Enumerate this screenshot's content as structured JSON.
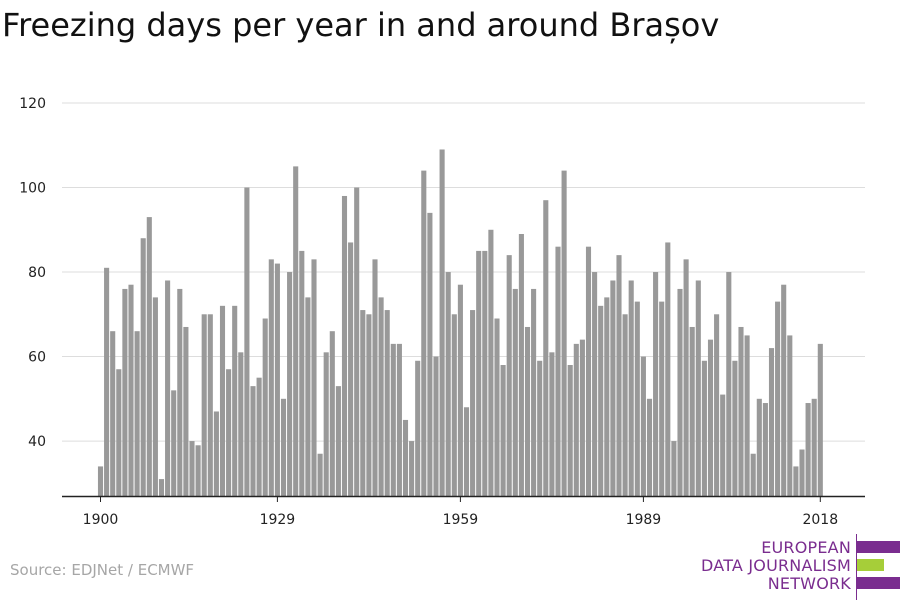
{
  "chart_data": {
    "type": "bar",
    "title": "Freezing days per year in and around Brașov",
    "xlabel": "",
    "ylabel": "",
    "x": [
      1900,
      1901,
      1902,
      1903,
      1904,
      1905,
      1906,
      1907,
      1908,
      1909,
      1910,
      1911,
      1912,
      1913,
      1914,
      1915,
      1916,
      1917,
      1918,
      1919,
      1920,
      1921,
      1922,
      1923,
      1924,
      1925,
      1926,
      1927,
      1928,
      1929,
      1930,
      1931,
      1932,
      1933,
      1934,
      1935,
      1936,
      1937,
      1938,
      1939,
      1940,
      1941,
      1942,
      1943,
      1944,
      1945,
      1946,
      1947,
      1948,
      1949,
      1950,
      1951,
      1952,
      1953,
      1954,
      1955,
      1956,
      1957,
      1958,
      1959,
      1960,
      1961,
      1962,
      1963,
      1964,
      1965,
      1966,
      1967,
      1968,
      1969,
      1970,
      1971,
      1972,
      1973,
      1974,
      1975,
      1976,
      1977,
      1978,
      1979,
      1980,
      1981,
      1982,
      1983,
      1984,
      1985,
      1986,
      1987,
      1988,
      1989,
      1990,
      1991,
      1992,
      1993,
      1994,
      1995,
      1996,
      1997,
      1998,
      1999,
      2000,
      2001,
      2002,
      2003,
      2004,
      2005,
      2006,
      2007,
      2008,
      2009,
      2010,
      2011,
      2012,
      2013,
      2014,
      2015,
      2016,
      2017,
      2018
    ],
    "values": [
      34,
      81,
      66,
      57,
      76,
      77,
      66,
      88,
      93,
      74,
      31,
      78,
      52,
      76,
      67,
      40,
      39,
      70,
      70,
      47,
      72,
      57,
      72,
      61,
      100,
      53,
      55,
      69,
      83,
      82,
      50,
      80,
      105,
      85,
      74,
      83,
      37,
      61,
      66,
      53,
      98,
      87,
      100,
      71,
      70,
      83,
      74,
      71,
      63,
      63,
      45,
      40,
      59,
      104,
      94,
      60,
      109,
      80,
      70,
      77,
      48,
      71,
      85,
      85,
      90,
      69,
      58,
      84,
      76,
      89,
      67,
      76,
      59,
      97,
      61,
      86,
      104,
      58,
      63,
      64,
      86,
      80,
      72,
      74,
      78,
      84,
      70,
      78,
      73,
      60,
      50,
      80,
      73,
      87,
      40,
      76,
      83,
      67,
      78,
      59,
      64,
      70,
      51,
      80,
      59,
      67,
      65,
      37,
      50,
      49,
      62,
      73,
      77,
      65,
      34,
      38,
      49,
      50,
      63
    ],
    "x_ticks": [
      "1900",
      "1929",
      "1959",
      "1989",
      "2018"
    ],
    "y_ticks": [
      "40",
      "60",
      "80",
      "100",
      "120"
    ],
    "ylim": [
      27,
      120
    ],
    "grid": true,
    "bar_color": "#999999"
  },
  "footer": {
    "source": "Source: EDJNet / ECMWF"
  },
  "logo": {
    "lines": [
      "EUROPEAN",
      "DATA JOURNALISM",
      "NETWORK"
    ],
    "text_color": "#7a2d8f",
    "bar_colors": [
      "#7a2d8f",
      "#a6ce39",
      "#7a2d8f"
    ]
  }
}
